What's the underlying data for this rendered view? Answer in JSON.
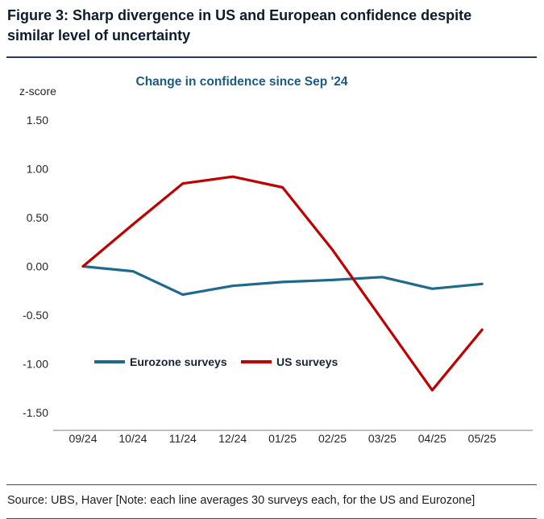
{
  "header": {
    "title": "Figure 3: Sharp divergence in US and European confidence despite similar level of uncertainty"
  },
  "chart_data": {
    "type": "line",
    "title": "Change in confidence since Sep '24",
    "ylabel": "z-score",
    "x": [
      "09/24",
      "10/24",
      "11/24",
      "12/24",
      "01/25",
      "02/25",
      "03/25",
      "04/25",
      "05/25"
    ],
    "ylim": [
      -1.5,
      1.5
    ],
    "yticks": [
      1.5,
      1.0,
      0.5,
      0.0,
      -0.5,
      -1.0,
      -1.5
    ],
    "grid": false,
    "legend_position": "inside-bottom-left",
    "series": [
      {
        "name": "Eurozone surveys",
        "color": "#1d6a8e",
        "values": [
          0.0,
          -0.05,
          -0.29,
          -0.2,
          -0.16,
          -0.14,
          -0.11,
          -0.23,
          -0.18
        ]
      },
      {
        "name": "US surveys",
        "color": "#c00000",
        "values": [
          0.0,
          0.43,
          0.85,
          0.92,
          0.81,
          0.17,
          -0.55,
          -1.27,
          -0.65
        ]
      }
    ]
  },
  "footer": {
    "source": "Source: UBS, Haver [Note: each line averages 30 surveys each, for the US and Eurozone]"
  },
  "colors": {
    "title_text": "#0d1b2e",
    "rule_navy": "#27395e",
    "chart_title_blue": "#1a5b85",
    "tick_text": "#262626",
    "legend_text": "#16243a",
    "axis_line": "#7f7f7f"
  }
}
